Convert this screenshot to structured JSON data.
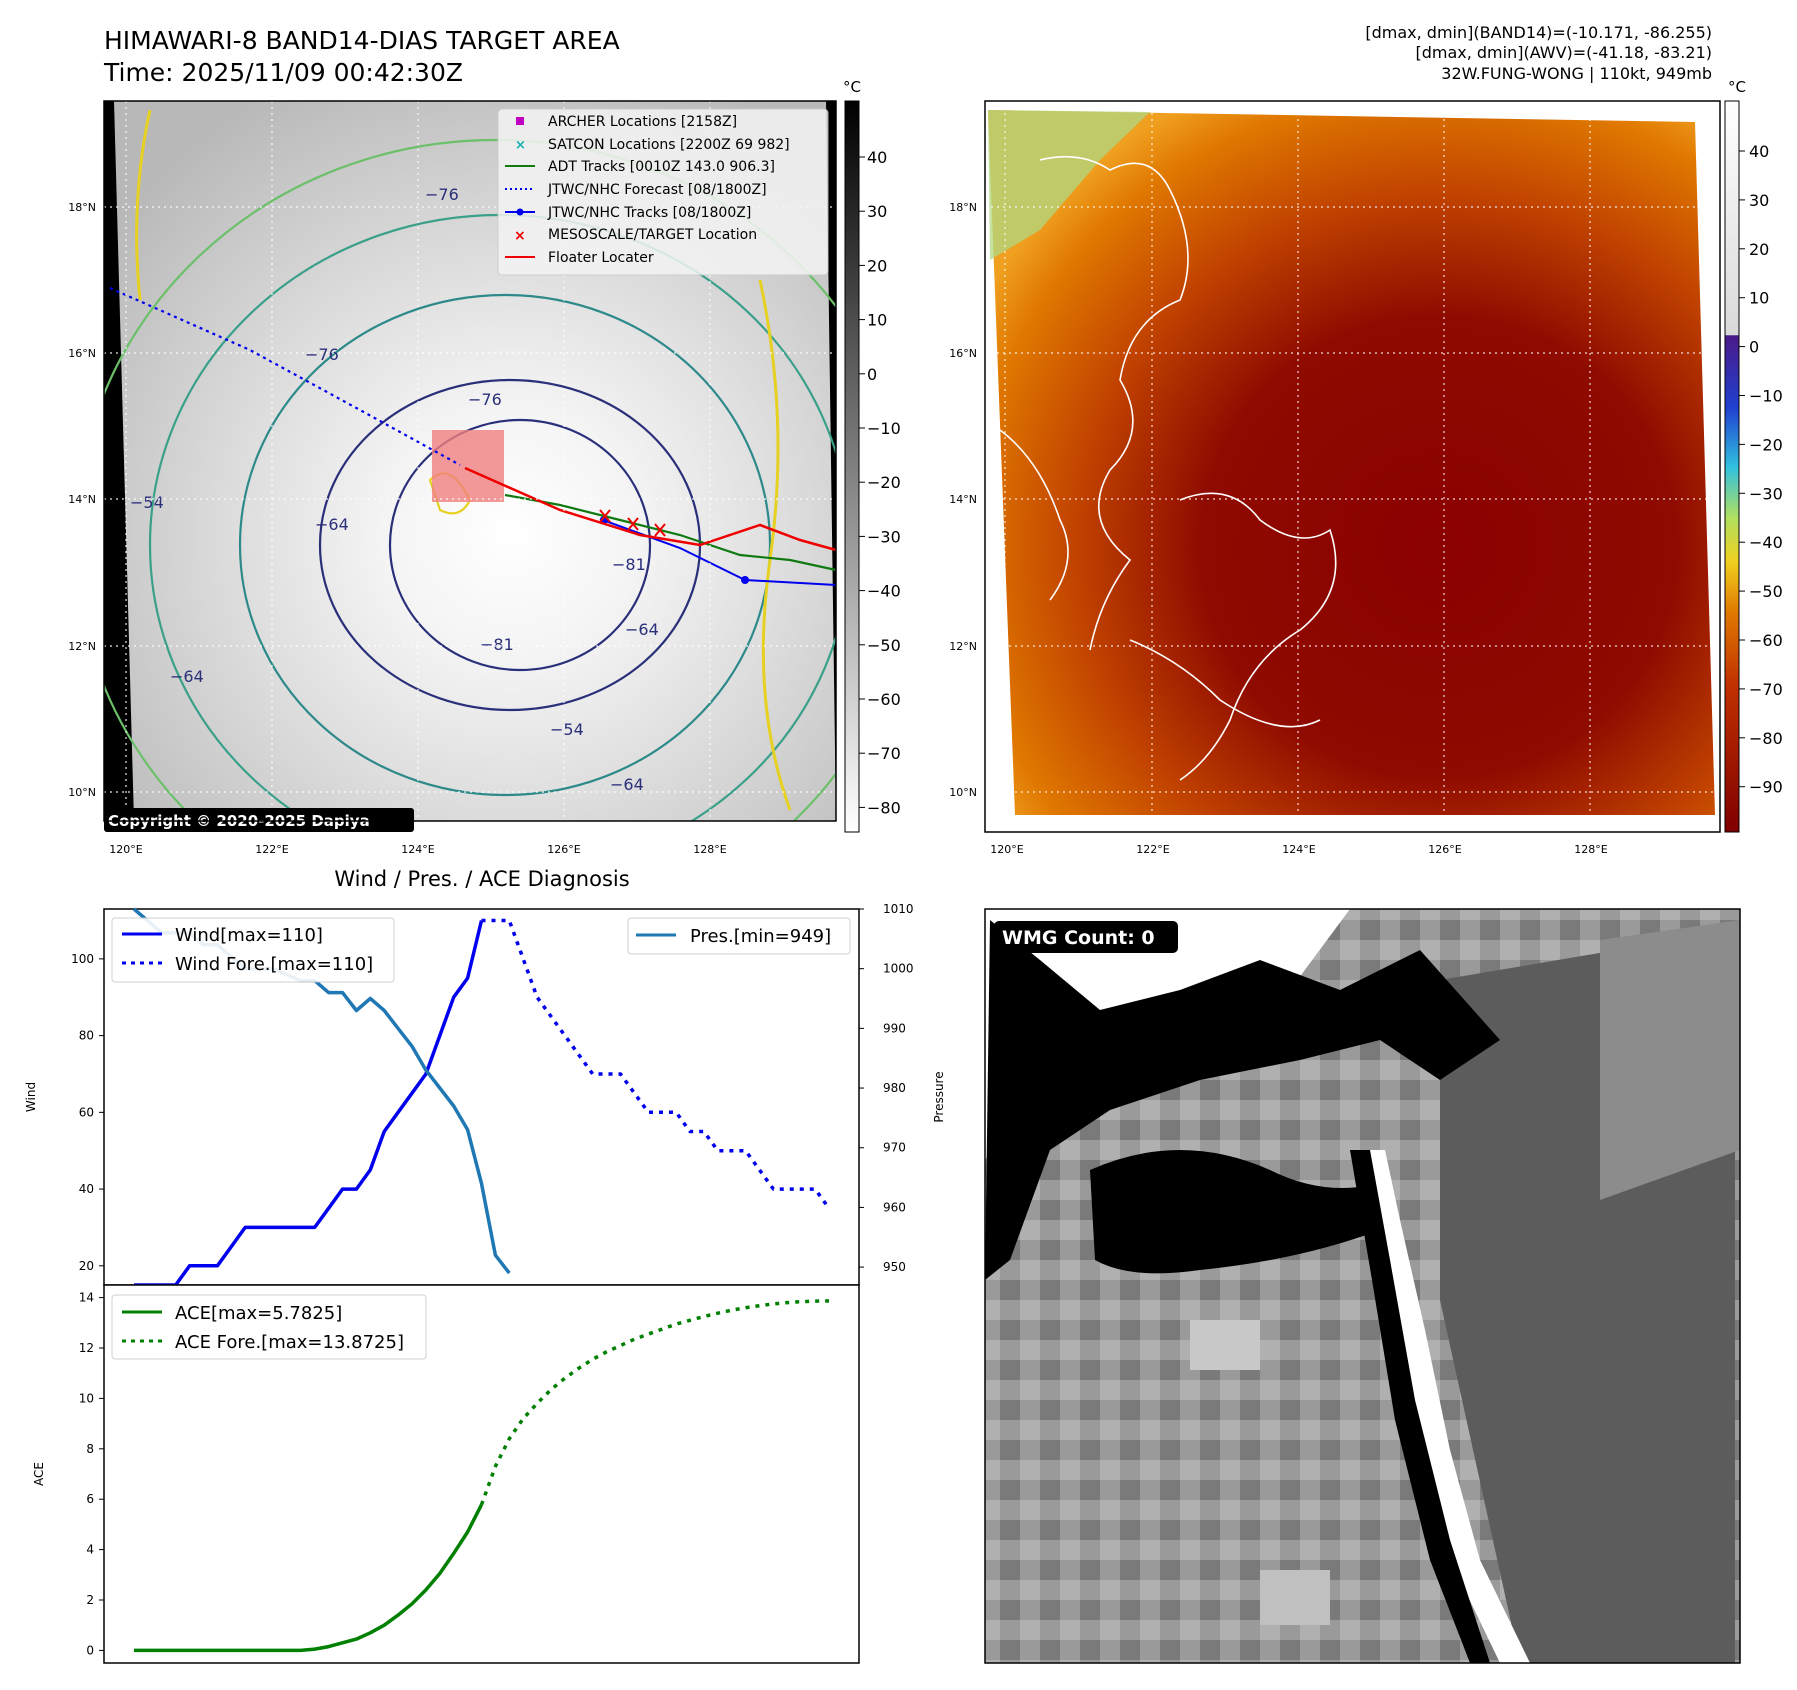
{
  "header": {
    "title_line1": "HIMAWARI-8 BAND14-DIAS TARGET AREA",
    "title_line2": "Time: 2025/11/09 00:42:30Z",
    "diag_line1": "[dmax, dmin](BAND14)=(-10.171, -86.255)",
    "diag_line2": "[dmax, dmin](AWV)=(-41.18, -83.21)",
    "diag_line3": "32W.FUNG-WONG | 110kt, 949mb"
  },
  "ir_panel": {
    "legend": [
      "ARCHER Locations [2158Z]",
      "SATCON Locations [2200Z 69 982]",
      "ADT Tracks [0010Z 143.0 906.3]",
      "JTWC/NHC Forecast [08/1800Z]",
      "JTWC/NHC Tracks [08/1800Z]",
      "MESOSCALE/TARGET Location",
      "Floater Locater"
    ],
    "copyright": "Copyright © 2020-2025 Dapiya",
    "contour_labels": [
      "−76",
      "−76",
      "−76",
      "−64",
      "−81",
      "−81",
      "−64",
      "−54",
      "−64",
      "−54",
      "−64"
    ],
    "colorbar_unit": "°C",
    "colorbar_ticks": [
      "40",
      "30",
      "20",
      "10",
      "0",
      "−10",
      "−20",
      "−30",
      "−40",
      "−50",
      "−60",
      "−70",
      "−80"
    ]
  },
  "awv_panel": {
    "colorbar_unit": "°C",
    "colorbar_ticks": [
      "40",
      "30",
      "20",
      "10",
      "0",
      "−10",
      "−20",
      "−30",
      "−40",
      "−50",
      "−60",
      "−70",
      "−80",
      "−90"
    ]
  },
  "map_axes": {
    "lon_ticks": [
      "120°E",
      "122°E",
      "124°E",
      "126°E",
      "128°E"
    ],
    "lat_ticks": [
      "18°N",
      "16°N",
      "14°N",
      "12°N",
      "10°N"
    ]
  },
  "wmg_panel": {
    "label": "WMG Count: 0"
  },
  "chart_data": [
    {
      "type": "line",
      "title": "Wind / Pres. / ACE Diagnosis",
      "ylabel": "Wind",
      "ylabel_right": "Pressure",
      "ylim": [
        15,
        113
      ],
      "ylim_right": [
        947,
        1010
      ],
      "x": [
        0,
        1,
        2,
        3,
        4,
        5,
        6,
        7,
        8,
        9,
        10,
        11,
        12,
        13,
        14,
        15,
        16,
        17,
        18,
        19,
        20,
        21,
        22,
        23,
        24,
        25,
        26,
        27,
        28,
        29,
        30,
        31,
        32,
        33,
        34,
        35,
        36,
        37,
        38,
        39,
        40,
        41,
        42,
        43,
        44,
        45,
        46,
        47,
        48,
        49,
        50
      ],
      "yticks": [
        "20",
        "40",
        "60",
        "80",
        "100"
      ],
      "yticks_right": [
        "950",
        "960",
        "970",
        "980",
        "990",
        "1000",
        "1010"
      ],
      "legend_left": [
        "Wind[max=110]",
        "Wind Fore.[max=110]"
      ],
      "legend_right": [
        "Pres.[min=949]"
      ],
      "series": [
        {
          "name": "Wind[max=110]",
          "axis": "left",
          "style": "solid",
          "color": "#0000ee",
          "values": [
            15,
            15,
            15,
            15,
            20,
            20,
            20,
            25,
            30,
            30,
            30,
            30,
            30,
            30,
            35,
            40,
            40,
            45,
            55,
            60,
            65,
            70,
            80,
            90,
            95,
            110,
            null,
            null,
            null,
            null,
            null,
            null,
            null,
            null,
            null,
            null,
            null,
            null,
            null,
            null,
            null,
            null,
            null,
            null,
            null,
            null,
            null,
            null,
            null,
            null,
            null
          ]
        },
        {
          "name": "Wind Fore.[max=110]",
          "axis": "left",
          "style": "dotted",
          "color": "#0000ee",
          "values": [
            null,
            null,
            null,
            null,
            null,
            null,
            null,
            null,
            null,
            null,
            null,
            null,
            null,
            null,
            null,
            null,
            null,
            null,
            null,
            null,
            null,
            null,
            null,
            null,
            null,
            110,
            110,
            110,
            100,
            90,
            85,
            80,
            75,
            70,
            70,
            70,
            65,
            60,
            60,
            60,
            55,
            55,
            50,
            50,
            50,
            45,
            40,
            40,
            40,
            40,
            35
          ]
        },
        {
          "name": "Pres.[min=949]",
          "axis": "right",
          "style": "solid",
          "color": "#1f77b4",
          "values": [
            1010,
            1008,
            1006,
            1006,
            1006,
            1004,
            1004,
            1002,
            1000,
            1000,
            1000,
            999,
            998,
            998,
            996,
            996,
            993,
            995,
            993,
            990,
            987,
            983,
            980,
            977,
            973,
            964,
            952,
            949,
            null,
            null,
            null,
            null,
            null,
            null,
            null,
            null,
            null,
            null,
            null,
            null,
            null,
            null,
            null,
            null,
            null,
            null,
            null,
            null,
            null,
            null,
            null
          ]
        }
      ]
    },
    {
      "type": "line",
      "ylabel": "ACE",
      "ylim": [
        -0.5,
        14.5
      ],
      "x": [
        0,
        1,
        2,
        3,
        4,
        5,
        6,
        7,
        8,
        9,
        10,
        11,
        12,
        13,
        14,
        15,
        16,
        17,
        18,
        19,
        20,
        21,
        22,
        23,
        24,
        25,
        26,
        27,
        28,
        29,
        30,
        31,
        32,
        33,
        34,
        35,
        36,
        37,
        38,
        39,
        40,
        41,
        42,
        43,
        44,
        45,
        46,
        47,
        48,
        49,
        50
      ],
      "yticks": [
        "0",
        "2",
        "4",
        "6",
        "8",
        "10",
        "12",
        "14"
      ],
      "legend": [
        "ACE[max=5.7825]",
        "ACE Fore.[max=13.8725]"
      ],
      "series": [
        {
          "name": "ACE[max=5.7825]",
          "style": "solid",
          "color": "#008000",
          "values": [
            0,
            0,
            0,
            0,
            0,
            0,
            0,
            0,
            0,
            0,
            0,
            0,
            0,
            0.05,
            0.15,
            0.3,
            0.45,
            0.7,
            1.0,
            1.4,
            1.85,
            2.4,
            3.05,
            3.85,
            4.7,
            5.78,
            null,
            null,
            null,
            null,
            null,
            null,
            null,
            null,
            null,
            null,
            null,
            null,
            null,
            null,
            null,
            null,
            null,
            null,
            null,
            null,
            null,
            null,
            null,
            null,
            null
          ]
        },
        {
          "name": "ACE Fore.[max=13.8725]",
          "style": "dotted",
          "color": "#008000",
          "values": [
            null,
            null,
            null,
            null,
            null,
            null,
            null,
            null,
            null,
            null,
            null,
            null,
            null,
            null,
            null,
            null,
            null,
            null,
            null,
            null,
            null,
            null,
            null,
            null,
            null,
            5.78,
            7.3,
            8.4,
            9.2,
            9.8,
            10.35,
            10.8,
            11.2,
            11.55,
            11.85,
            12.1,
            12.35,
            12.55,
            12.75,
            12.95,
            13.1,
            13.25,
            13.38,
            13.5,
            13.6,
            13.68,
            13.75,
            13.8,
            13.84,
            13.86,
            13.87
          ]
        }
      ]
    }
  ]
}
